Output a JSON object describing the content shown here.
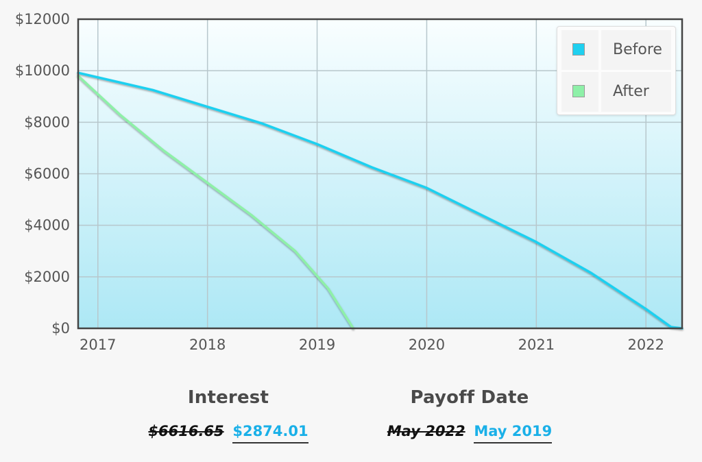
{
  "chart_data": {
    "type": "line",
    "x_ticks": [
      "2017",
      "2018",
      "2019",
      "2020",
      "2021",
      "2022"
    ],
    "xlim": [
      2016.82,
      2022.33
    ],
    "y_ticks": [
      "$0",
      "$2000",
      "$4000",
      "$6000",
      "$8000",
      "$10000",
      "$12000"
    ],
    "ylim": [
      0,
      12000
    ],
    "grid": true,
    "legend_position": "top-right",
    "series": [
      {
        "name": "Before",
        "color": "#1fd0f0",
        "points": [
          [
            2016.82,
            9920
          ],
          [
            2017.5,
            9250
          ],
          [
            2018.0,
            8600
          ],
          [
            2018.5,
            7950
          ],
          [
            2019.0,
            7150
          ],
          [
            2019.5,
            6250
          ],
          [
            2020.0,
            5450
          ],
          [
            2020.5,
            4400
          ],
          [
            2021.0,
            3350
          ],
          [
            2021.5,
            2150
          ],
          [
            2022.0,
            750
          ],
          [
            2022.23,
            50
          ],
          [
            2022.33,
            0
          ]
        ]
      },
      {
        "name": "After",
        "color": "#8ef0a8",
        "points": [
          [
            2016.82,
            9800
          ],
          [
            2017.2,
            8300
          ],
          [
            2017.6,
            6900
          ],
          [
            2018.0,
            5650
          ],
          [
            2018.4,
            4400
          ],
          [
            2018.8,
            3000
          ],
          [
            2019.1,
            1550
          ],
          [
            2019.33,
            0
          ]
        ]
      }
    ]
  },
  "summary": {
    "interest": {
      "title": "Interest",
      "old": "$6616.65",
      "new": "$2874.01"
    },
    "payoff": {
      "title": "Payoff Date",
      "old": "May 2022",
      "new": "May 2019"
    }
  }
}
